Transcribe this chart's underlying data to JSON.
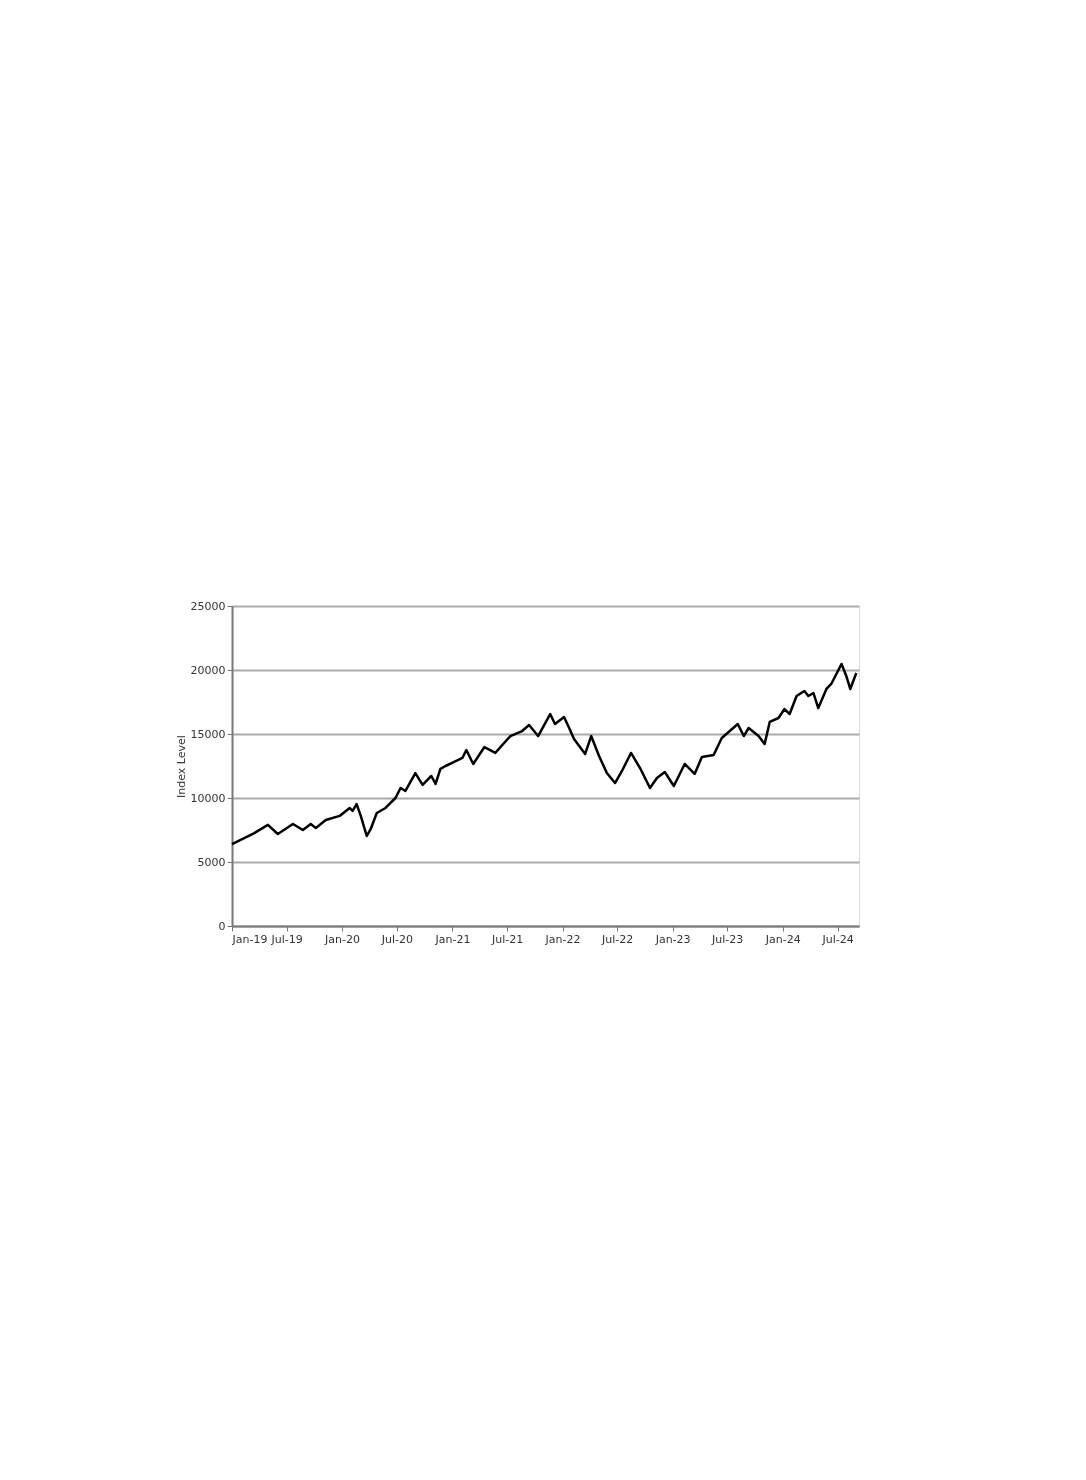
{
  "chart_data": {
    "type": "line",
    "ylabel": "Index Level",
    "x": [
      "2019-01-01",
      "2019-03-11",
      "2019-04-30",
      "2019-06-02",
      "2019-07-22",
      "2019-08-24",
      "2019-09-19",
      "2019-10-06",
      "2019-11-08",
      "2019-12-24",
      "2020-01-26",
      "2020-02-05",
      "2020-02-18",
      "2020-03-03",
      "2020-03-13",
      "2020-03-23",
      "2020-04-05",
      "2020-04-25",
      "2020-05-24",
      "2020-06-26",
      "2020-07-13",
      "2020-07-29",
      "2020-08-31",
      "2020-09-24",
      "2020-10-23",
      "2020-11-06",
      "2020-11-22",
      "2020-12-09",
      "2021-02-03",
      "2021-02-16",
      "2021-03-11",
      "2021-04-17",
      "2021-05-23",
      "2021-07-12",
      "2021-08-20",
      "2021-09-12",
      "2021-10-12",
      "2021-11-21",
      "2021-12-07",
      "2022-01-06",
      "2022-01-23",
      "2022-02-08",
      "2022-03-17",
      "2022-04-06",
      "2022-05-02",
      "2022-05-28",
      "2022-06-24",
      "2022-07-17",
      "2022-08-16",
      "2022-09-15",
      "2022-10-18",
      "2022-11-10",
      "2022-12-06",
      "2023-01-05",
      "2023-02-10",
      "2023-03-15",
      "2023-04-08",
      "2023-05-17",
      "2023-06-13",
      "2023-08-05",
      "2023-08-25",
      "2023-09-10",
      "2023-10-13",
      "2023-11-02",
      "2023-11-19",
      "2023-12-18",
      "2024-01-07",
      "2024-01-24",
      "2024-02-16",
      "2024-03-13",
      "2024-03-26",
      "2024-04-12",
      "2024-04-28",
      "2024-05-25",
      "2024-06-10",
      "2024-06-27",
      "2024-07-14",
      "2024-07-30",
      "2024-08-12",
      "2024-09-01"
    ],
    "series": [
      {
        "color": "#000000",
        "values": [
          6400,
          7190,
          7900,
          7190,
          7970,
          7500,
          7970,
          7650,
          8280,
          8600,
          9220,
          9000,
          9530,
          8600,
          7800,
          7030,
          7580,
          8830,
          9220,
          10000,
          10780,
          10550,
          11950,
          11020,
          11720,
          11100,
          12270,
          12500,
          13130,
          13750,
          12660,
          13980,
          13520,
          14840,
          15230,
          15700,
          14840,
          16560,
          15780,
          16330,
          15470,
          14610,
          13440,
          14840,
          13280,
          11950,
          11170,
          12110,
          13520,
          12340,
          10780,
          11560,
          12030,
          10940,
          12660,
          11880,
          13200,
          13360,
          14690,
          15780,
          14840,
          15470,
          14840,
          14220,
          15940,
          16250,
          16950,
          16560,
          17970,
          18360,
          17970,
          18200,
          17030,
          18520,
          18910,
          19690,
          20470,
          19530,
          18520,
          19770
        ]
      }
    ],
    "xlim": [
      "2019-01-01",
      "2024-09-10"
    ],
    "xticks": [
      {
        "value": "2019-01-01",
        "label": "Jan-19"
      },
      {
        "value": "2019-07-01",
        "label": "Jul-19"
      },
      {
        "value": "2020-01-01",
        "label": "Jan-20"
      },
      {
        "value": "2020-07-01",
        "label": "Jul-20"
      },
      {
        "value": "2021-01-01",
        "label": "Jan-21"
      },
      {
        "value": "2021-07-01",
        "label": "Jul-21"
      },
      {
        "value": "2022-01-01",
        "label": "Jan-22"
      },
      {
        "value": "2022-07-01",
        "label": "Jul-22"
      },
      {
        "value": "2023-01-01",
        "label": "Jan-23"
      },
      {
        "value": "2023-07-01",
        "label": "Jul-23"
      },
      {
        "value": "2024-01-01",
        "label": "Jan-24"
      },
      {
        "value": "2024-07-01",
        "label": "Jul-24"
      }
    ],
    "ylim": [
      0,
      25000
    ],
    "yticks": [
      0,
      5000,
      10000,
      15000,
      20000,
      25000
    ],
    "grid": "y",
    "legend": false,
    "marker": "none",
    "line_style": "solid"
  }
}
